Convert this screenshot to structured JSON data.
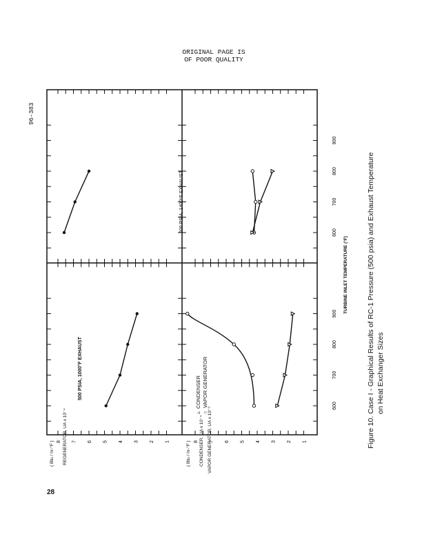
{
  "header": {
    "line1": "ORIGINAL PAGE IS",
    "line2": "OF POOR QUALITY"
  },
  "doc_number": "96-383",
  "page_number": "28",
  "caption": {
    "line1": "Figure 10.   Case I - Graphical Results of RC-1 Pressure (500 psia) and Exhaust Temperature",
    "line2": "on Heat Exchanger Sizes"
  },
  "shared_xlabel": "TURBINE INLET TEMPERATURE (°F)",
  "regen_axis": {
    "line1": "REGENERATOR, UA x 10⁻⁴",
    "line2": "( Btu / hr-°F )"
  },
  "vapor_axis": {
    "line1": "VAPOR GENERATOR, UA x 10⁻³",
    "line2": "CONDENSER, UA x 10⁻⁴",
    "line3": "( Btu / hr-°F )"
  },
  "legend": {
    "condenser": "CONDENSER",
    "vapor": "VAPOR GENERATOR"
  },
  "chart_data": [
    {
      "type": "line",
      "panel": "upper-left",
      "title": "500 PSIA, 1000°F EXHAUST",
      "xlim": [
        550,
        950
      ],
      "ylim": [
        0,
        8
      ],
      "x": [
        600,
        700,
        800,
        900
      ],
      "series": [
        {
          "name": "",
          "marker": "dot",
          "values": [
            4.9,
            4.0,
            3.5,
            2.9
          ]
        }
      ]
    },
    {
      "type": "line",
      "panel": "upper-right",
      "title": "500 PSIA, 1400°F EXHAUST",
      "xlim": [
        550,
        950
      ],
      "ylim": [
        0,
        8
      ],
      "x": [
        600,
        700,
        800
      ],
      "series": [
        {
          "name": "",
          "marker": "dot",
          "values": [
            7.6,
            6.9,
            6.0
          ]
        }
      ]
    },
    {
      "type": "line",
      "panel": "lower-left",
      "xlim": [
        550,
        950
      ],
      "ylim": [
        0,
        8
      ],
      "x": [
        600,
        700,
        800,
        900
      ],
      "series": [
        {
          "name": "VAPOR GENERATOR",
          "marker": "circle",
          "values": [
            4.2,
            4.3,
            5.5,
            8.5
          ]
        },
        {
          "name": "CONDENSER",
          "marker": "triangle",
          "values": [
            2.7,
            2.2,
            1.9,
            1.7
          ]
        }
      ]
    },
    {
      "type": "line",
      "panel": "lower-right",
      "xlim": [
        550,
        950
      ],
      "ylim": [
        0,
        8
      ],
      "x": [
        600,
        700,
        800
      ],
      "series": [
        {
          "name": "VAPOR GENERATOR",
          "marker": "circle",
          "values": [
            4.2,
            4.1,
            4.3
          ]
        },
        {
          "name": "CONDENSER",
          "marker": "triangle",
          "values": [
            4.3,
            3.8,
            3.0
          ]
        }
      ]
    }
  ],
  "xticks": [
    "600",
    "700",
    "800",
    "900"
  ],
  "yticks": [
    "8",
    "7",
    "6",
    "5",
    "4",
    "3",
    "2",
    "1"
  ]
}
